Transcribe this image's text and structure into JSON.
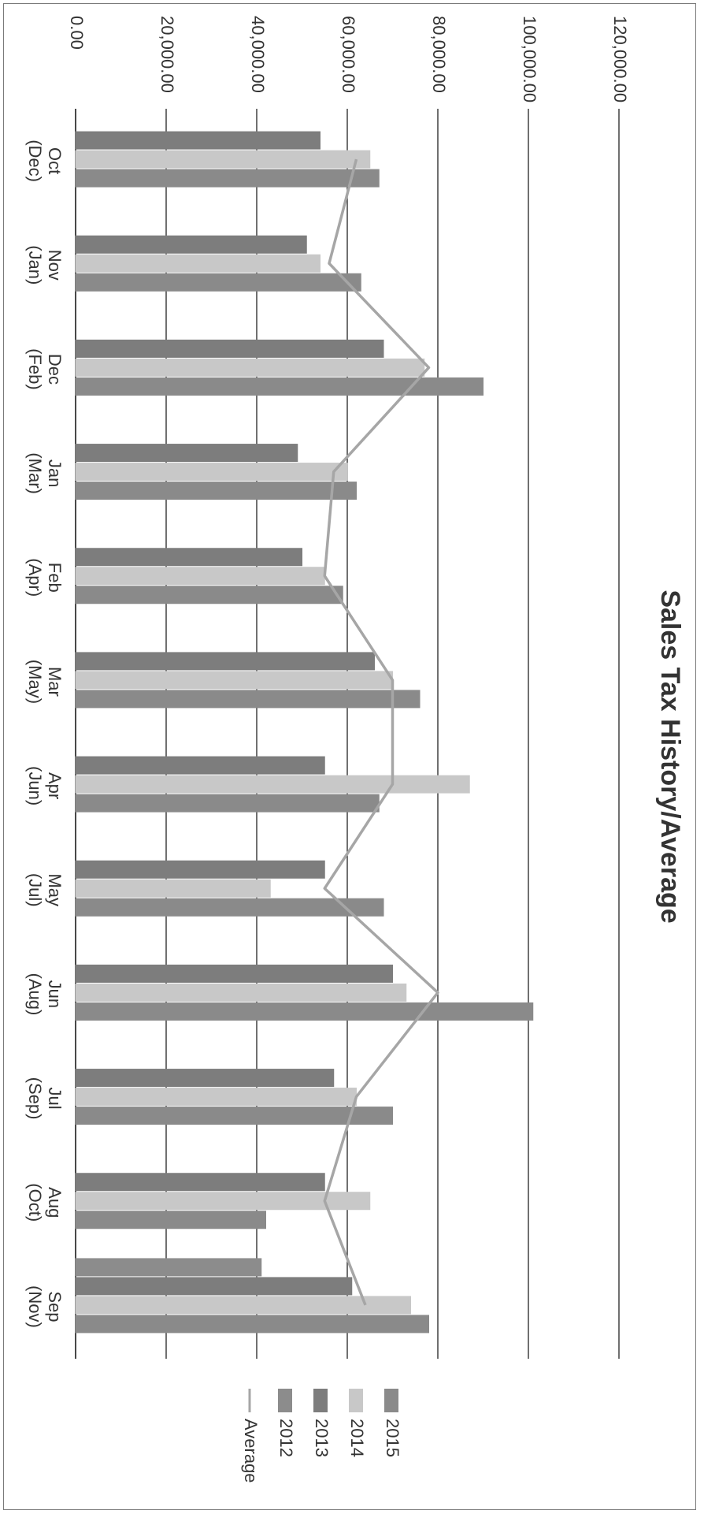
{
  "chart_data": {
    "type": "bar",
    "title": "Sales Tax History/Average",
    "orientation": "vertical bars shown in a page rotated 90 degrees clockwise",
    "categories": [
      [
        "Oct",
        "(Dec)"
      ],
      [
        "Nov",
        "(Jan)"
      ],
      [
        "Dec",
        "(Feb)"
      ],
      [
        "Jan",
        "(Mar)"
      ],
      [
        "Feb",
        "(Apr)"
      ],
      [
        "Mar",
        "(May)"
      ],
      [
        "Apr",
        "(Jun)"
      ],
      [
        "May",
        "(Jul)"
      ],
      [
        "Jun",
        "(Aug)"
      ],
      [
        "Jul",
        "(Sep)"
      ],
      [
        "Aug",
        "(Oct)"
      ],
      [
        "Sep",
        "(Nov)"
      ]
    ],
    "value_ticks": [
      "0.00",
      "20,000.00",
      "40,000.00",
      "60,000.00",
      "80,000.00",
      "100,000.00",
      "120,000.00"
    ],
    "ylim": [
      0,
      120000
    ],
    "grid": true,
    "legend_position": "right",
    "series": [
      {
        "name": "2012",
        "color": "#8c8c8c",
        "values": [
          null,
          null,
          null,
          null,
          null,
          null,
          null,
          null,
          null,
          null,
          null,
          41000
        ]
      },
      {
        "name": "2013",
        "color": "#7d7d7d",
        "values": [
          54000,
          51000,
          68000,
          49000,
          50000,
          66000,
          55000,
          55000,
          70000,
          57000,
          55000,
          61000
        ]
      },
      {
        "name": "2014",
        "color": "#c8c8c8",
        "values": [
          65000,
          54000,
          77000,
          60000,
          55000,
          70000,
          87000,
          43000,
          73000,
          62000,
          65000,
          74000
        ]
      },
      {
        "name": "2015",
        "color": "#8a8a8a",
        "values": [
          67000,
          63000,
          90000,
          62000,
          59000,
          76000,
          67000,
          68000,
          101000,
          70000,
          42000,
          78000
        ]
      }
    ],
    "average": {
      "name": "Average",
      "color": "#a6a6a6",
      "values": [
        62000,
        56000,
        78000,
        57000,
        55000,
        70000,
        70000,
        55000,
        80000,
        62000,
        55000,
        64000
      ]
    }
  }
}
